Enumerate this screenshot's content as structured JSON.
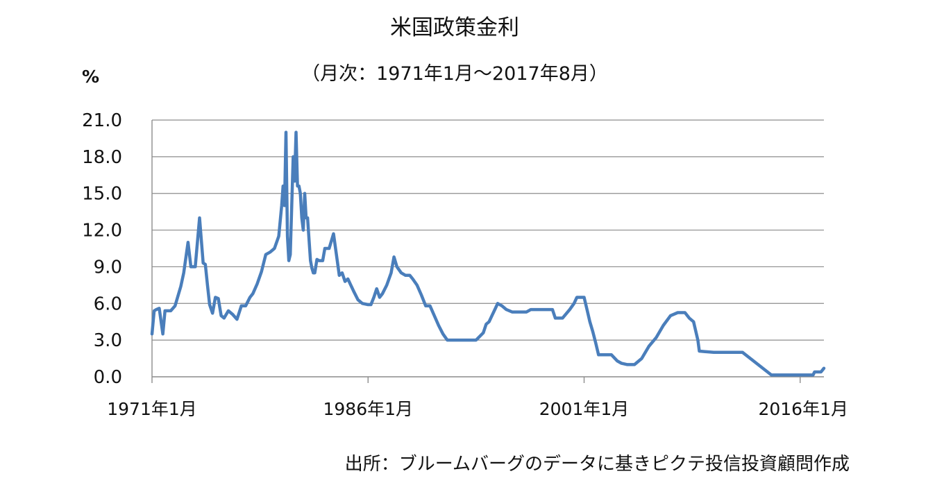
{
  "chart_data": {
    "type": "line",
    "title": "米国政策金利",
    "subtitle": "（月次：1971年1月～2017年8月）",
    "ylabel": "%",
    "source": "出所：ブルームバーグのデータに基きピクテ投信投資顧問作成",
    "ylim": [
      0,
      21
    ],
    "y_ticks": [
      "0.0",
      "3.0",
      "6.0",
      "9.0",
      "12.0",
      "15.0",
      "18.0",
      "21.0"
    ],
    "x_tick_labels": [
      "1971年1月",
      "1986年1月",
      "2001年1月",
      "2016年1月"
    ],
    "grid": true,
    "series": [
      {
        "color": "#4a7ebb",
        "x": [
          1971.0,
          1971.15,
          1971.3,
          1971.5,
          1971.75,
          1971.9,
          1972.0,
          1972.3,
          1972.6,
          1973.0,
          1973.2,
          1973.5,
          1973.7,
          1973.9,
          1974.0,
          1974.3,
          1974.55,
          1974.7,
          1974.85,
          1975.0,
          1975.2,
          1975.4,
          1975.6,
          1975.8,
          1976.0,
          1976.3,
          1976.6,
          1976.9,
          1977.2,
          1977.5,
          1977.8,
          1978.0,
          1978.3,
          1978.6,
          1978.9,
          1979.2,
          1979.5,
          1979.8,
          1980.0,
          1980.1,
          1980.2,
          1980.3,
          1980.4,
          1980.5,
          1980.6,
          1980.7,
          1980.8,
          1980.9,
          1981.0,
          1981.1,
          1981.2,
          1981.3,
          1981.4,
          1981.5,
          1981.6,
          1981.7,
          1981.8,
          1982.0,
          1982.1,
          1982.2,
          1982.3,
          1982.45,
          1982.6,
          1982.75,
          1982.85,
          1983.0,
          1983.3,
          1983.6,
          1984.0,
          1984.2,
          1984.4,
          1984.6,
          1984.8,
          1985.0,
          1985.3,
          1985.6,
          1986.0,
          1986.2,
          1986.4,
          1986.6,
          1986.8,
          1987.0,
          1987.3,
          1987.6,
          1987.8,
          1988.0,
          1988.3,
          1988.6,
          1988.9,
          1989.1,
          1989.4,
          1989.7,
          1990.0,
          1990.3,
          1990.6,
          1990.9,
          1991.2,
          1991.5,
          1991.8,
          1992.0,
          1992.4,
          1992.8,
          1993.5,
          1994.0,
          1994.2,
          1994.4,
          1994.6,
          1994.8,
          1995.0,
          1995.3,
          1995.6,
          1996.0,
          1996.5,
          1997.0,
          1997.3,
          1998.0,
          1998.8,
          1999.0,
          1999.5,
          2000.0,
          2000.3,
          2000.5,
          2000.8,
          2001.0,
          2001.2,
          2001.4,
          2001.6,
          2001.8,
          2002.0,
          2002.5,
          2002.9,
          2003.3,
          2003.6,
          2004.0,
          2004.5,
          2005.0,
          2005.5,
          2006.0,
          2006.5,
          2007.0,
          2007.5,
          2007.8,
          2008.0,
          2008.3,
          2008.6,
          2008.9,
          2009.0,
          2010.0,
          2012.0,
          2014.0,
          2015.9,
          2016.0,
          2016.5,
          2016.9,
          2017.0,
          2017.2,
          2017.45,
          2017.65
        ]
      }
    ]
  }
}
